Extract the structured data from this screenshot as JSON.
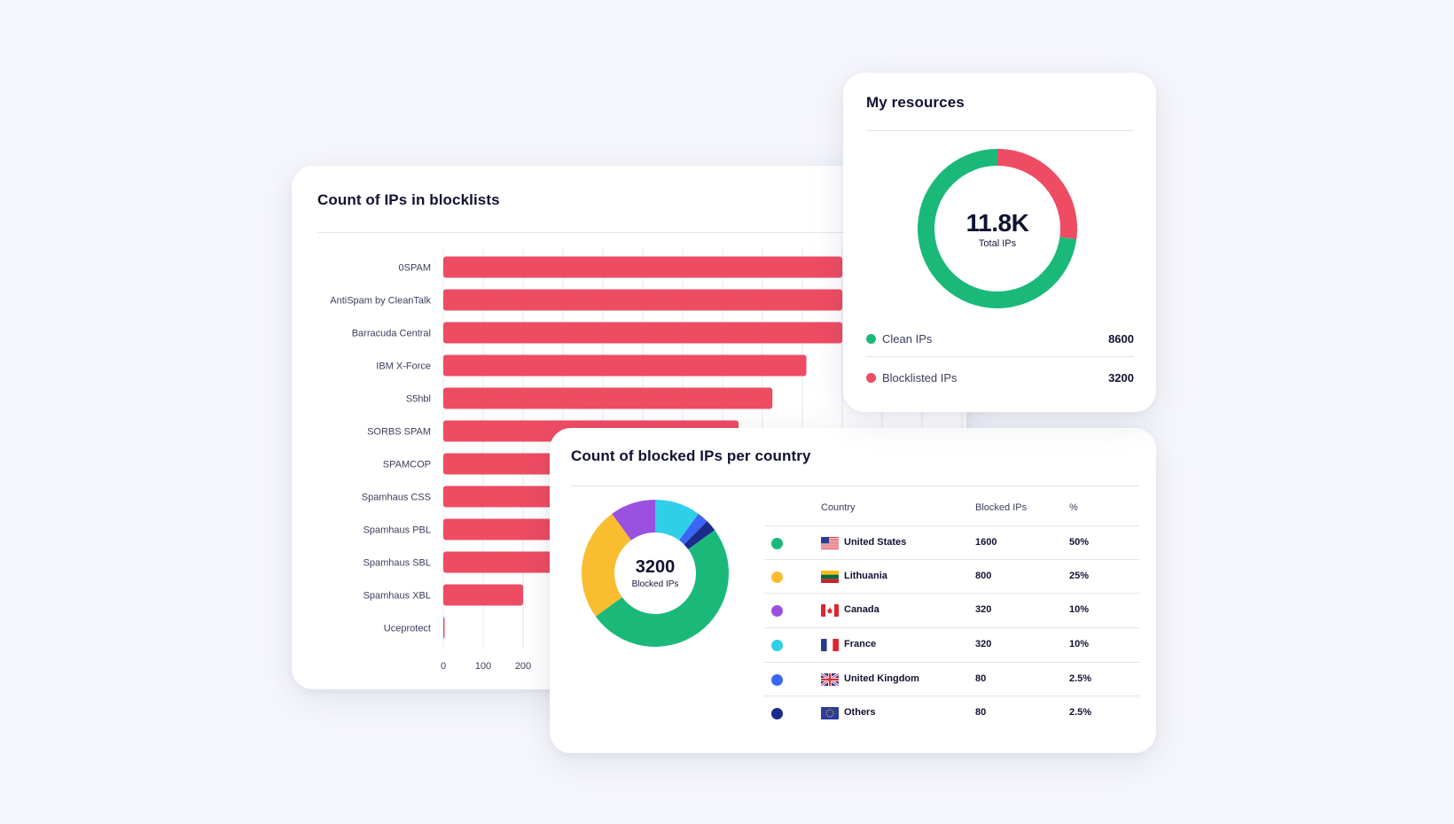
{
  "blocklists": {
    "title": "Count of IPs in blocklists"
  },
  "resources": {
    "title": "My resources",
    "total_value": "11.8K",
    "total_label": "Total IPs",
    "legend": [
      {
        "label": "Clean IPs",
        "value": "8600",
        "color": "#1ab97a"
      },
      {
        "label": "Blocklisted IPs",
        "value": "3200",
        "color": "#ee4c63"
      }
    ]
  },
  "country": {
    "title": "Count of blocked IPs per country",
    "center_value": "3200",
    "center_label": "Blocked IPs",
    "headers": {
      "country": "Country",
      "blocked": "Blocked IPs",
      "pct": "%"
    },
    "rows": [
      {
        "name": "United States",
        "value": "1600",
        "pct": "50%",
        "color": "#1ab97a",
        "flag": "us-flag-icon"
      },
      {
        "name": "Lithuania",
        "value": "800",
        "pct": "25%",
        "color": "#f9bd2f",
        "flag": "lt-flag-icon"
      },
      {
        "name": "Canada",
        "value": "320",
        "pct": "10%",
        "color": "#9b51e0",
        "flag": "ca-flag-icon"
      },
      {
        "name": "France",
        "value": "320",
        "pct": "10%",
        "color": "#2ecfe8",
        "flag": "fr-flag-icon"
      },
      {
        "name": "United Kingdom",
        "value": "80",
        "pct": "2.5%",
        "color": "#3a66f5",
        "flag": "gb-flag-icon"
      },
      {
        "name": "Others",
        "value": "80",
        "pct": "2.5%",
        "color": "#1c2a8c",
        "flag": "eu-flag-icon"
      }
    ]
  },
  "chart_data": [
    {
      "type": "bar",
      "orientation": "horizontal",
      "title": "Count of IPs in blocklists",
      "categories": [
        "0SPAM",
        "AntiSpam by CleanTalk",
        "Barracuda Central",
        "IBM X-Force",
        "S5hbl",
        "SORBS SPAM",
        "SPAMCOP",
        "Spamhaus CSS",
        "Spamhaus PBL",
        "Spamhaus SBL",
        "Spamhaus XBL",
        "Uceprotect"
      ],
      "values": [
        1000,
        1000,
        1000,
        910,
        825,
        740,
        560,
        560,
        560,
        560,
        200,
        2
      ],
      "xticks": [
        "0",
        "100",
        "200"
      ],
      "xlim": [
        0,
        1300
      ],
      "color": "#ee4c63",
      "grid": true
    },
    {
      "type": "pie",
      "title": "My resources",
      "labels": [
        "Clean IPs",
        "Blocklisted IPs"
      ],
      "values": [
        8600,
        3200
      ],
      "colors": [
        "#1ab97a",
        "#ee4c63"
      ]
    },
    {
      "type": "pie",
      "title": "Count of blocked IPs per country",
      "labels": [
        "France",
        "United Kingdom",
        "Others",
        "United States",
        "Lithuania",
        "Canada"
      ],
      "values": [
        320,
        80,
        80,
        1600,
        800,
        320
      ],
      "colors": [
        "#2ecfe8",
        "#3a66f5",
        "#1c2a8c",
        "#1ab97a",
        "#f9bd2f",
        "#9b51e0"
      ]
    }
  ]
}
